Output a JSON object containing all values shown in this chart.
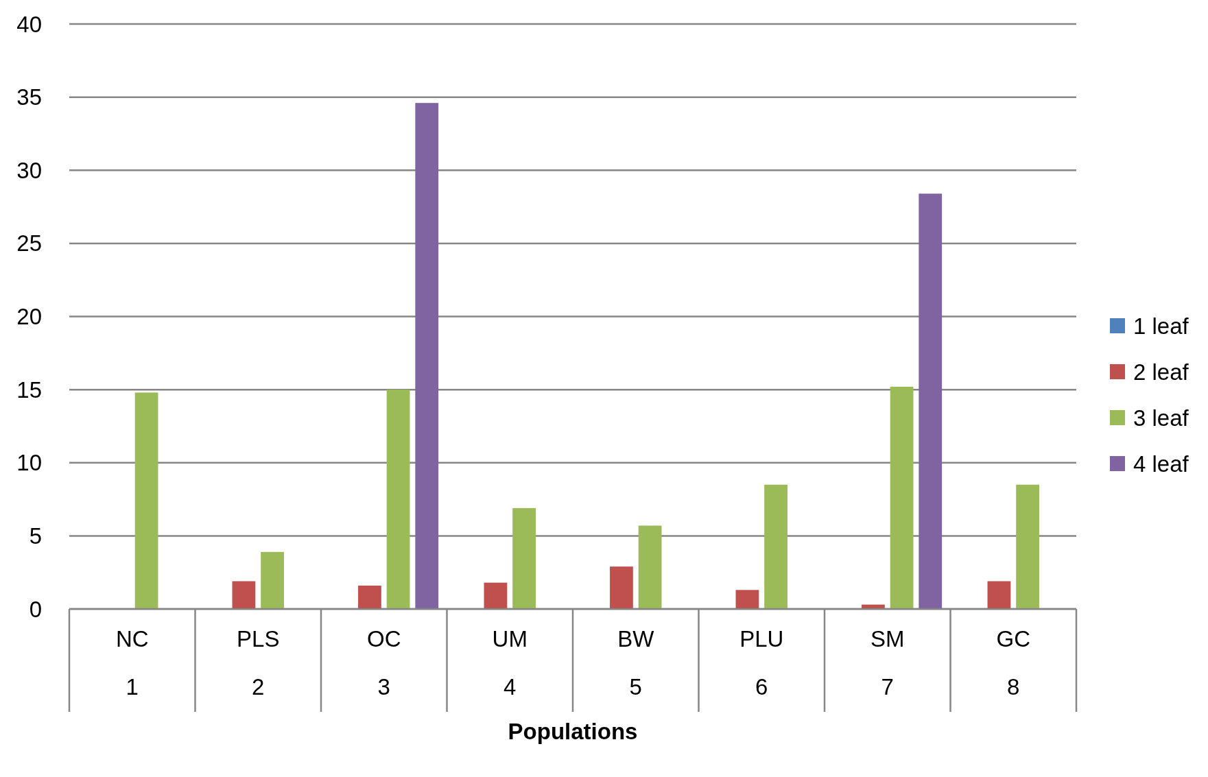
{
  "chart_data": {
    "type": "bar",
    "xlabel": "Populations",
    "categories": [
      "NC\n1",
      "PLS\n2",
      "OC\n3",
      "UM\n4",
      "BW\n5",
      "PLU\n6",
      "SM\n7",
      "GC\n8"
    ],
    "series": [
      {
        "name": "1 leaf",
        "color": "#4f81bd",
        "values": [
          0,
          0,
          0,
          0,
          0,
          0,
          0,
          0
        ]
      },
      {
        "name": "2 leaf",
        "color": "#c0504d",
        "values": [
          0,
          1.9,
          1.6,
          1.8,
          2.9,
          1.3,
          0.3,
          1.9
        ]
      },
      {
        "name": "3 leaf",
        "color": "#9bbb59",
        "values": [
          14.8,
          3.9,
          15.0,
          6.9,
          5.7,
          8.5,
          15.2,
          8.5
        ]
      },
      {
        "name": "4 leaf",
        "color": "#8064a2",
        "values": [
          0,
          0,
          34.6,
          0,
          0,
          0,
          28.4,
          0
        ]
      }
    ],
    "ylim": [
      0,
      40
    ],
    "yticks": [
      0,
      5,
      10,
      15,
      20,
      25,
      30,
      35,
      40
    ],
    "grid": "y",
    "legend": "right"
  }
}
